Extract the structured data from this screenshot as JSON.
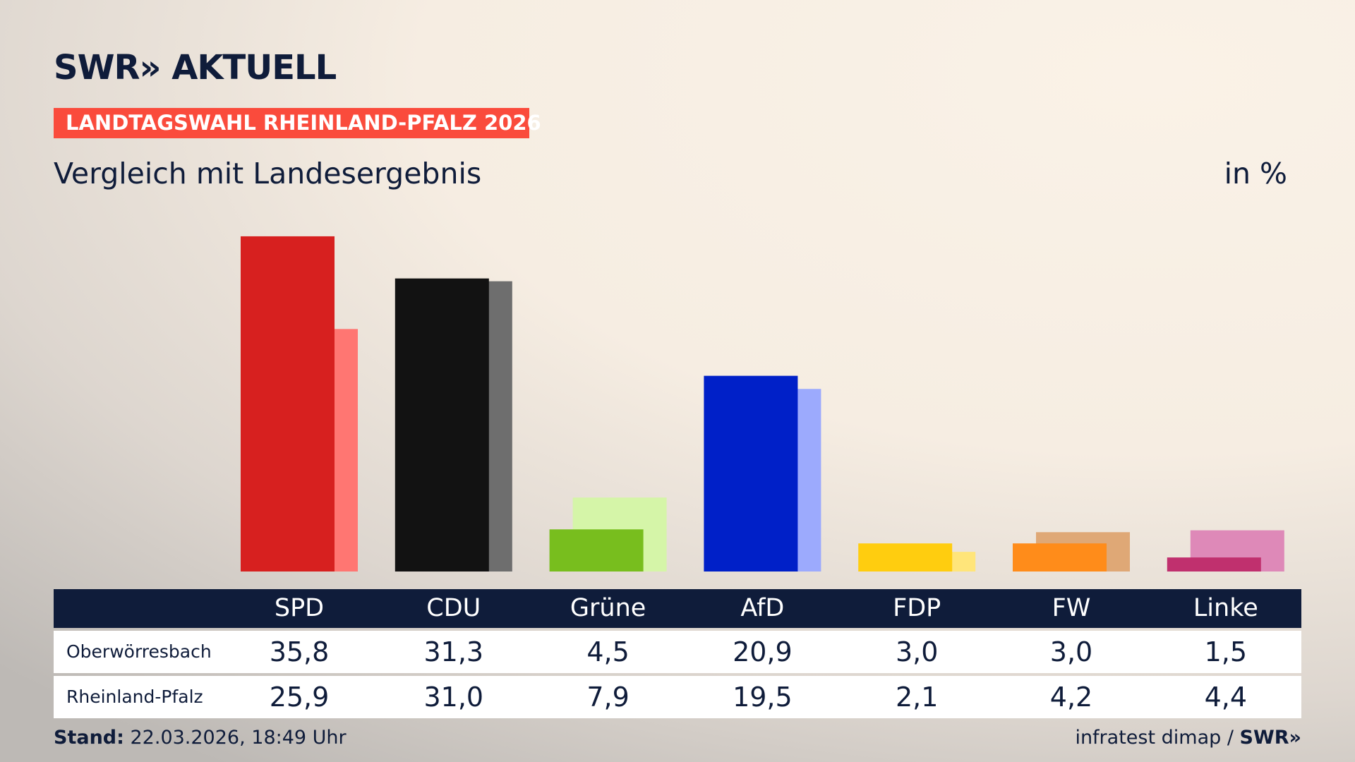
{
  "brand": "SWR» AKTUELL",
  "badge": "LANDTAGSWAHL RHEINLAND-PFALZ 2026",
  "subtitle": "Vergleich mit Landesergebnis",
  "unit": "in %",
  "footer": {
    "stand_label": "Stand:",
    "stand_value": " 22.03.2026, 18:49 Uhr",
    "source": "infratest dimap / ",
    "source_brand": "SWR»"
  },
  "chart_data": {
    "type": "bar",
    "categories": [
      "SPD",
      "CDU",
      "Grüne",
      "AfD",
      "FDP",
      "FW",
      "Linke"
    ],
    "series": [
      {
        "name": "Oberwörresbach",
        "values": [
          "35,8",
          "31,3",
          "4,5",
          "20,9",
          "3,0",
          "3,0",
          "1,5"
        ],
        "colors": [
          "#d7201f",
          "#121212",
          "#78be1e",
          "#0020c8",
          "#ffcd0f",
          "#ff8c1a",
          "#c0306e"
        ]
      },
      {
        "name": "Rheinland-Pfalz",
        "values": [
          "25,9",
          "31,0",
          "7,9",
          "19,5",
          "2,1",
          "4,2",
          "4,4"
        ],
        "colors": [
          "#ff7672",
          "#6e6e6e",
          "#d5f5a8",
          "#9caafd",
          "#ffe57a",
          "#dfa876",
          "#de89b8"
        ]
      }
    ],
    "ylim": [
      0,
      40
    ]
  }
}
